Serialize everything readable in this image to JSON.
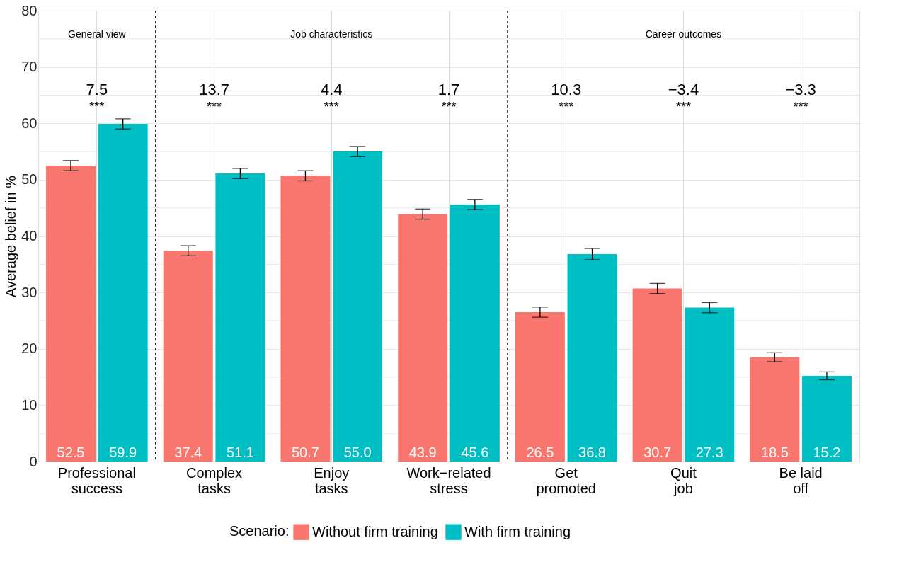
{
  "chart_data": {
    "type": "bar",
    "categories": [
      "Professional success",
      "Complex tasks",
      "Enjoy tasks",
      "Work−related stress",
      "Get promoted",
      "Quit job",
      "Be laid off"
    ],
    "series": [
      {
        "name": "Without firm training",
        "color": "#f8766d",
        "values": [
          52.5,
          37.4,
          50.7,
          43.9,
          26.5,
          30.7,
          18.5
        ],
        "errors": [
          0.9,
          0.9,
          0.9,
          0.9,
          0.9,
          0.9,
          0.8
        ],
        "value_labels": [
          "52.5",
          "37.4",
          "50.7",
          "43.9",
          "26.5",
          "30.7",
          "18.5"
        ]
      },
      {
        "name": "With firm training",
        "color": "#00bfc4",
        "values": [
          59.9,
          51.1,
          55.0,
          45.6,
          36.8,
          27.3,
          15.2
        ],
        "errors": [
          0.9,
          0.9,
          0.9,
          0.9,
          1.0,
          0.9,
          0.7
        ],
        "value_labels": [
          "59.9",
          "51.1",
          "55.0",
          "45.6",
          "36.8",
          "27.3",
          "15.2"
        ]
      }
    ],
    "ylabel": "Average belief in %",
    "legend_title": "Scenario:",
    "legend": "bottom",
    "ylim": [
      0,
      80
    ],
    "yticks": [
      0,
      {
        "value": 5,
        "label": null
      },
      10,
      {
        "value": 15,
        "label": null
      },
      20,
      {
        "value": 25,
        "label": null
      },
      30,
      {
        "value": 35,
        "label": null
      },
      40,
      {
        "value": 45,
        "label": null
      },
      50,
      {
        "value": 55,
        "label": null
      },
      60,
      {
        "value": 65,
        "label": null
      },
      70,
      {
        "value": 75,
        "label": null
      },
      80
    ],
    "grid": true,
    "annotations": [
      "General view",
      "Job characteristics",
      "Career outcomes",
      "7.5",
      "13.7",
      "4.4",
      "1.7",
      "10.3",
      "−3.4",
      "−3.3",
      "***",
      "***",
      "***",
      "***",
      "***",
      "***",
      "***"
    ]
  }
}
